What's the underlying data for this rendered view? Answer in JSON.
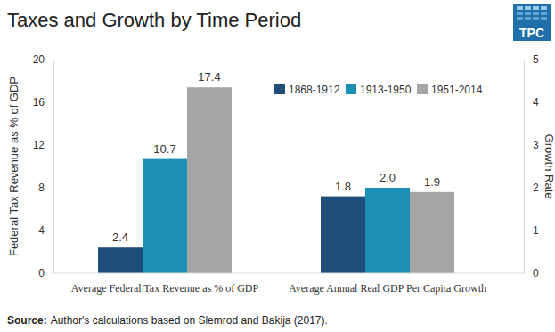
{
  "chart_data": [
    {
      "type": "bar",
      "title": "Taxes and Growth by Time Period",
      "ylabel": "Federal Tax Revenue as % of GDP",
      "categories": [
        "Average Federal Tax Revenue as % of GDP"
      ],
      "series": [
        {
          "color": "#1f4e79",
          "values": [
            2.4
          ]
        },
        {
          "color": "#1b8fb4",
          "values": [
            10.7
          ]
        },
        {
          "color": "#a5a5a5",
          "values": [
            17.4
          ]
        }
      ],
      "ylim": [
        0,
        20
      ],
      "yticks": [
        0,
        4,
        8,
        12,
        16,
        20
      ],
      "data_labels": true,
      "source_label": "Source:",
      "source": "Author's calculations based on Slemrod and Bakija (2017).",
      "logo": "TPC"
    },
    {
      "type": "bar",
      "y2label": "Growth Rate",
      "categories": [
        "Average Annual Real GDP Per Capita Growth"
      ],
      "series": [
        {
          "name": "1868-1912",
          "color": "#1f4e79",
          "values": [
            1.8
          ],
          "axis": "y2"
        },
        {
          "name": "1913-1950",
          "color": "#1b8fb4",
          "values": [
            2.0
          ],
          "value_labels": [
            "2.0"
          ],
          "axis": "y2"
        },
        {
          "name": "1951-2014",
          "color": "#a5a5a5",
          "values": [
            1.9
          ],
          "axis": "y2"
        }
      ],
      "y2lim": [
        0,
        5
      ],
      "y2ticks": [
        0,
        1,
        2,
        3,
        4,
        5
      ],
      "data_labels": true,
      "legend": "upper right"
    }
  ]
}
